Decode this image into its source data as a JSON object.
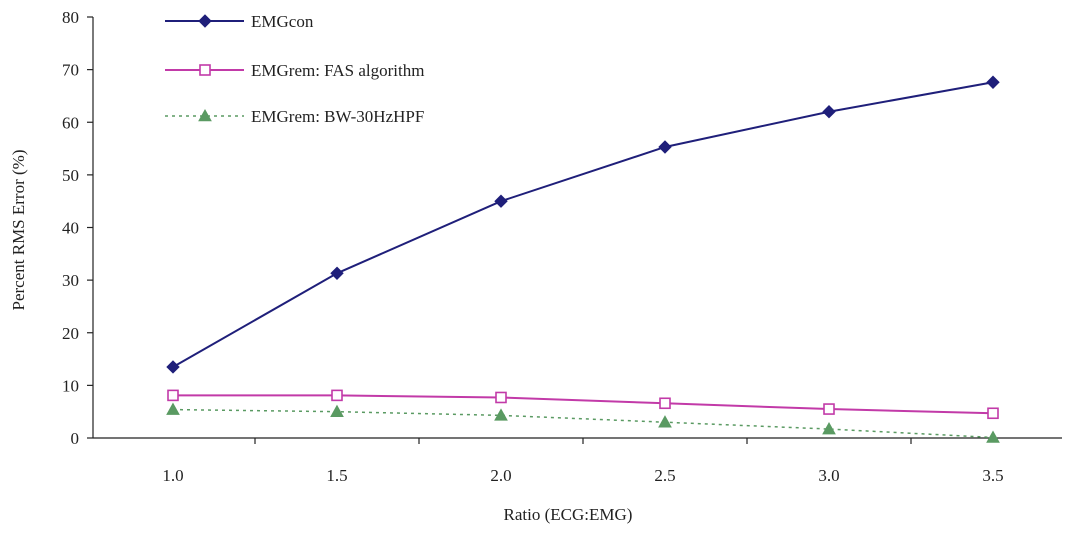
{
  "chart_data": {
    "type": "line",
    "title": "",
    "xlabel": "Ratio (ECG:EMG)",
    "ylabel": "Percent RMS Error (%)",
    "x": [
      1.0,
      1.5,
      2.0,
      2.5,
      3.0,
      3.5
    ],
    "x_tick_labels": [
      "1.0",
      "1.5",
      "2.0",
      "2.5",
      "3.0",
      "3.5"
    ],
    "ylim": [
      0,
      80
    ],
    "y_ticks": [
      0,
      10,
      20,
      30,
      40,
      50,
      60,
      70,
      80
    ],
    "grid": false,
    "legend_position": "top-left",
    "series": [
      {
        "name": "EMGcon",
        "values": [
          13.5,
          31.3,
          45.0,
          55.3,
          62.0,
          67.6
        ],
        "color": "#1f1f7a",
        "marker": "diamond",
        "line_style": "solid"
      },
      {
        "name": "EMGrem: FAS algorithm",
        "values": [
          8.1,
          8.1,
          7.7,
          6.6,
          5.5,
          4.7
        ],
        "color": "#c23aa8",
        "marker": "square-open",
        "line_style": "solid"
      },
      {
        "name": "EMGrem: BW-30HzHPF",
        "values": [
          5.4,
          5.0,
          4.3,
          3.0,
          1.7,
          0.1
        ],
        "color": "#5a9a62",
        "marker": "triangle",
        "line_style": "dotted"
      }
    ]
  }
}
